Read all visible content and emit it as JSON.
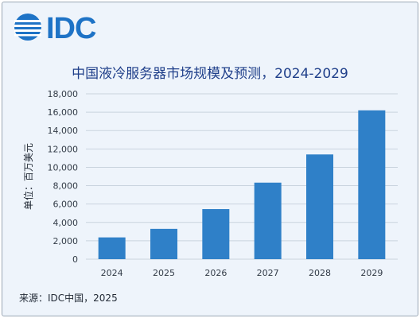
{
  "logo": {
    "text": "IDC",
    "color": "#1e73c6"
  },
  "footer": {
    "source": "来源：IDC中国，2025"
  },
  "chart_data": {
    "type": "bar",
    "title": "中国液冷服务器市场规模及预测，2024-2029",
    "xlabel": "",
    "ylabel": "单位：百万美元",
    "categories": [
      "2024",
      "2025",
      "2026",
      "2027",
      "2028",
      "2029"
    ],
    "tick_labels_shown": [
      "2024",
      "2025",
      "2026",
      "2027",
      "2028",
      "2029"
    ],
    "values": [
      2370,
      3300,
      5450,
      8330,
      11400,
      16200
    ],
    "ylim": [
      0,
      18000
    ],
    "y_ticks": [
      0,
      2000,
      4000,
      6000,
      8000,
      10000,
      12000,
      14000,
      16000,
      18000
    ],
    "y_tick_labels": [
      "0",
      "2,000",
      "4,000",
      "6,000",
      "8,000",
      "10,000",
      "12,000",
      "14,000",
      "16,000",
      "18,000"
    ],
    "grid": true,
    "legend": "none",
    "bar_color": "#2f80c8",
    "grid_color": "#c9d3de"
  }
}
